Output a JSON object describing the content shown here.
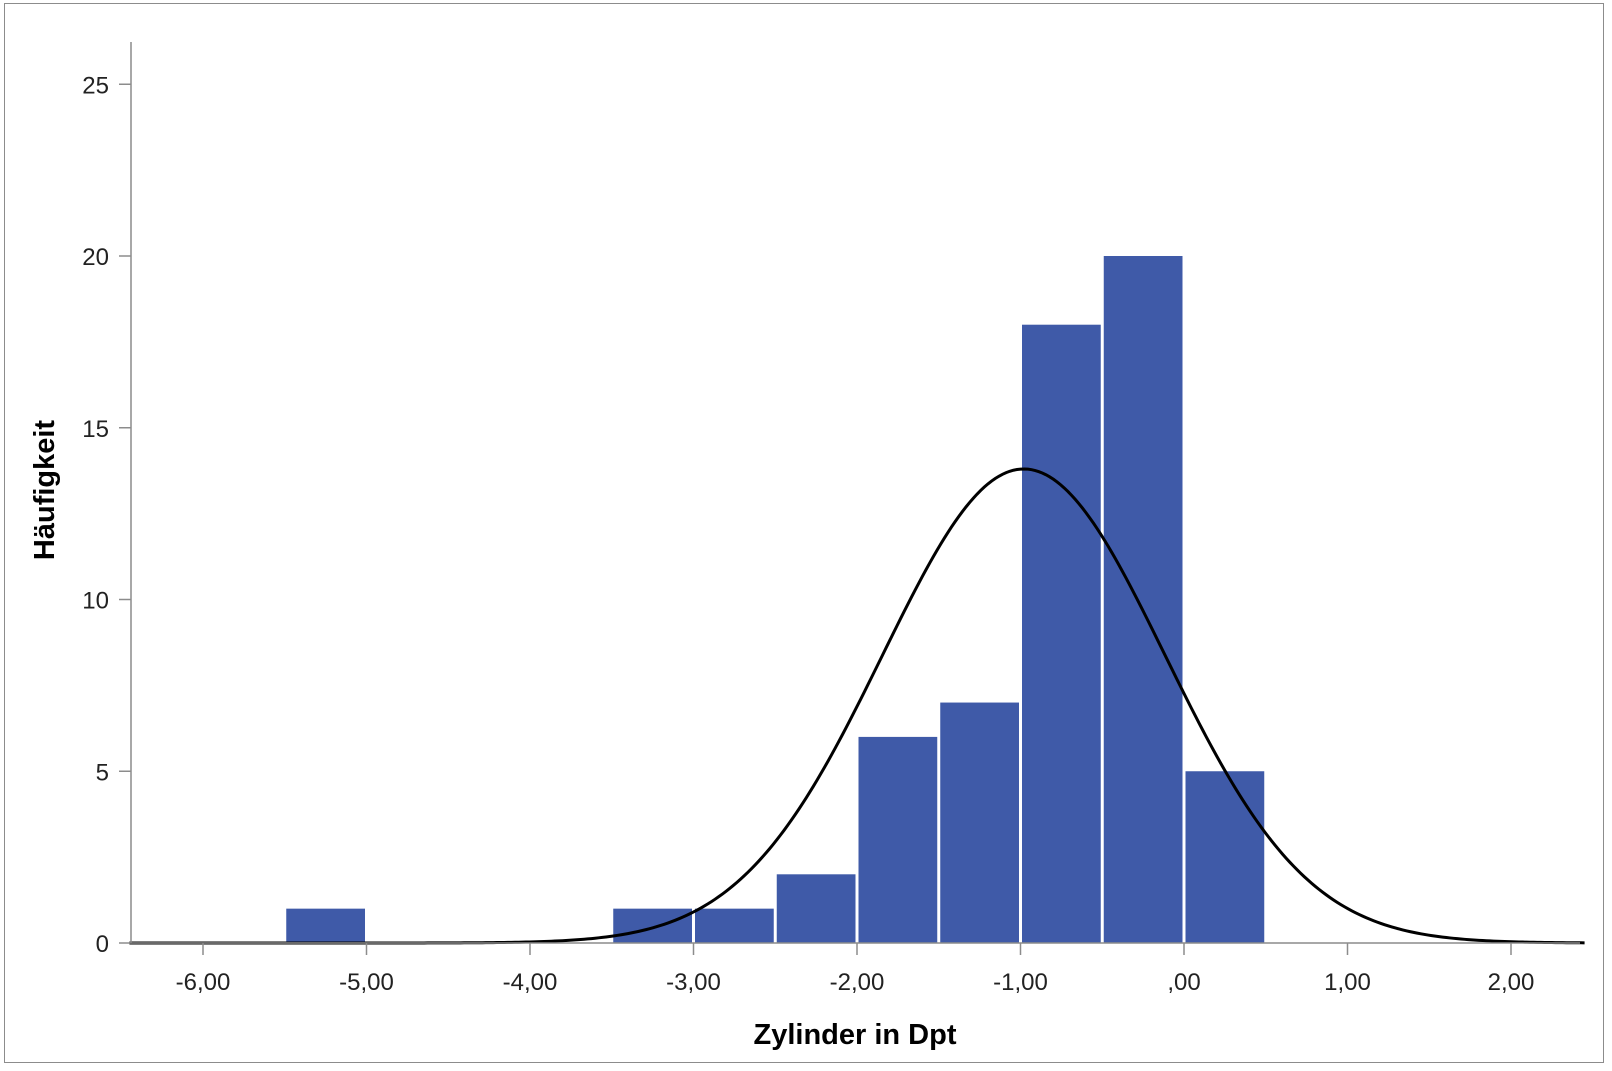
{
  "chart_data": {
    "type": "bar",
    "subtype": "histogram",
    "xlabel": "Zylinder in Dpt",
    "ylabel": "Häufigkeit",
    "xlim": [
      -6.45,
      2.45
    ],
    "ylim": [
      0,
      25
    ],
    "x_ticks": [
      -6,
      -5,
      -4,
      -3,
      -2,
      -1,
      0,
      1,
      2
    ],
    "x_tick_labels": [
      "-6,00",
      "-5,00",
      "-4,00",
      "-3,00",
      "-2,00",
      "-1,00",
      ",00",
      "1,00",
      "2,00"
    ],
    "y_ticks": [
      0,
      5,
      10,
      15,
      20,
      25
    ],
    "y_tick_labels": [
      "0",
      "5",
      "10",
      "15",
      "20",
      "25"
    ],
    "bin_width": 0.5,
    "bins": [
      {
        "start": -5.5,
        "end": -5.0,
        "count": 1
      },
      {
        "start": -3.5,
        "end": -3.0,
        "count": 1
      },
      {
        "start": -3.0,
        "end": -2.5,
        "count": 1
      },
      {
        "start": -2.5,
        "end": -2.0,
        "count": 2
      },
      {
        "start": -2.0,
        "end": -1.5,
        "count": 6
      },
      {
        "start": -1.5,
        "end": -1.0,
        "count": 7
      },
      {
        "start": -1.0,
        "end": -0.5,
        "count": 18
      },
      {
        "start": -0.5,
        "end": 0.0,
        "count": 20
      },
      {
        "start": 0.0,
        "end": 0.5,
        "count": 5
      }
    ],
    "normal_curve": {
      "mean": -0.98,
      "std": 0.865,
      "peak": 13.8
    },
    "grid": false,
    "legend": "none",
    "colors": {
      "bar": "#3f5aa8",
      "bar_edge": "#ffffff",
      "curve": "#000000",
      "axis": "#8c8c8c"
    }
  }
}
